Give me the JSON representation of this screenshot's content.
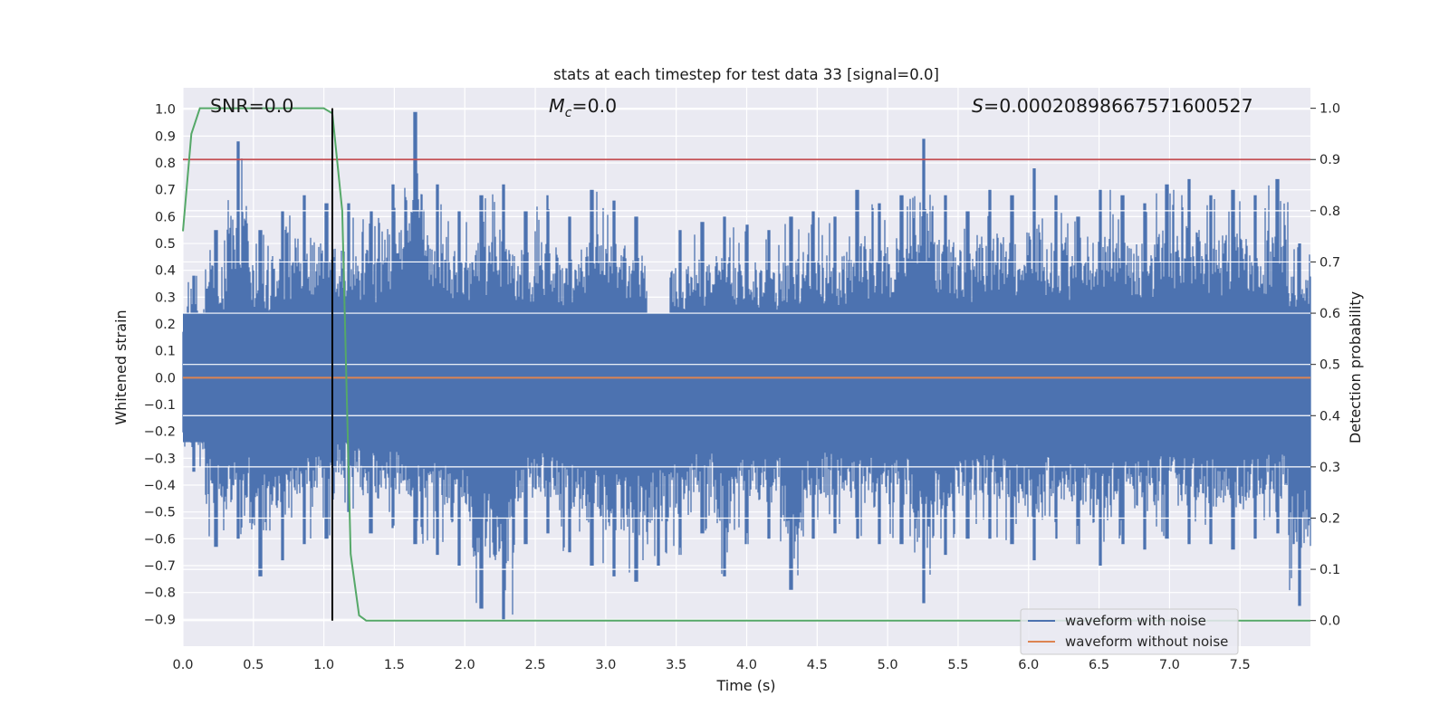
{
  "chart_data": {
    "type": "line",
    "title": "stats at each timestep for test data 33 [signal=0.0]",
    "xlabel": "Time (s)",
    "ylabel": "Whitened strain",
    "ylabel_right": "Detection probability",
    "xlim": [
      0.0,
      8.0
    ],
    "ylim": [
      -1.0,
      1.08
    ],
    "ylim_right": [
      -0.05,
      1.04
    ],
    "xticks": [
      "0.0",
      "0.5",
      "1.0",
      "1.5",
      "2.0",
      "2.5",
      "3.0",
      "3.5",
      "4.0",
      "4.5",
      "5.0",
      "5.5",
      "6.0",
      "6.5",
      "7.0",
      "7.5"
    ],
    "yticks_left": [
      "1.0",
      "0.9",
      "0.8",
      "0.7",
      "0.6",
      "0.5",
      "0.4",
      "0.3",
      "0.2",
      "0.1",
      "0.0",
      "-0.1",
      "-0.2",
      "-0.3",
      "-0.4",
      "-0.5",
      "-0.6",
      "-0.7",
      "-0.8",
      "-0.9"
    ],
    "yticks_right": [
      "1.0",
      "0.9",
      "0.8",
      "0.7",
      "0.6",
      "0.5",
      "0.4",
      "0.3",
      "0.2",
      "0.1",
      "0.0"
    ],
    "annotations": {
      "snr": "SNR=0.0",
      "mc_symbol": "M",
      "mc_sub": "c",
      "mc_value": "=0.0",
      "s_symbol": "S",
      "s_value": "=0.00020898667571600527"
    },
    "legend": {
      "placement": "lower-right",
      "entries": [
        "waveform with noise",
        "waveform without noise"
      ]
    },
    "colors": {
      "noise": "#4c72b0",
      "clean": "#dd8452",
      "probability": "#55a868",
      "threshold": "#c44e52",
      "marker": "#000000",
      "plot_bg": "#eaeaf2",
      "grid": "#ffffff"
    },
    "series": [
      {
        "name": "waveform with noise",
        "axis": "left",
        "envelope_upper": [
          0.38,
          0.55,
          0.88,
          0.55,
          0.62,
          0.68,
          0.65,
          0.65,
          0.62,
          0.72,
          0.99,
          0.72,
          0.62,
          0.68,
          0.72,
          0.62,
          0.68,
          0.6,
          0.7,
          0.66,
          0.6,
          0.12,
          0.55,
          0.58,
          0.6,
          0.57,
          0.55,
          0.6,
          0.62,
          0.6,
          0.7,
          0.65,
          0.68,
          0.89,
          0.68,
          0.62,
          0.7,
          0.68,
          0.78,
          0.68,
          0.6,
          0.7,
          0.68,
          0.65,
          0.72,
          0.74,
          0.68,
          0.7,
          0.68,
          0.74,
          0.5
        ],
        "envelope_lower": [
          -0.35,
          -0.63,
          -0.6,
          -0.74,
          -0.68,
          -0.62,
          -0.6,
          -0.5,
          -0.58,
          -0.56,
          -0.62,
          -0.66,
          -0.7,
          -0.86,
          -0.9,
          -0.62,
          -0.58,
          -0.65,
          -0.7,
          -0.74,
          -0.76,
          -0.7,
          -0.66,
          -0.58,
          -0.74,
          -0.62,
          -0.6,
          -0.79,
          -0.6,
          -0.58,
          -0.6,
          -0.62,
          -0.62,
          -0.84,
          -0.66,
          -0.6,
          -0.6,
          -0.62,
          -0.68,
          -0.6,
          -0.62,
          -0.7,
          -0.62,
          -0.64,
          -0.6,
          -0.62,
          -0.62,
          -0.64,
          -0.6,
          -0.58,
          -0.85
        ]
      },
      {
        "name": "waveform without noise",
        "axis": "left",
        "x": [
          0.0,
          8.0
        ],
        "y": [
          0.0,
          0.0
        ]
      },
      {
        "axis": "right",
        "x": [
          0.0,
          0.06,
          0.12,
          0.2,
          0.4,
          0.6,
          0.8,
          1.0,
          1.06,
          1.13,
          1.19,
          1.25,
          1.3,
          1.4,
          2.0,
          4.0,
          6.0,
          8.0
        ],
        "y": [
          0.76,
          0.95,
          1.0,
          1.0,
          1.0,
          1.0,
          1.0,
          1.0,
          0.99,
          0.8,
          0.13,
          0.01,
          0.0,
          0.0,
          0.0,
          0.0,
          0.0,
          0.0
        ]
      }
    ],
    "threshold_right": 0.9,
    "marker_x": 1.06
  }
}
